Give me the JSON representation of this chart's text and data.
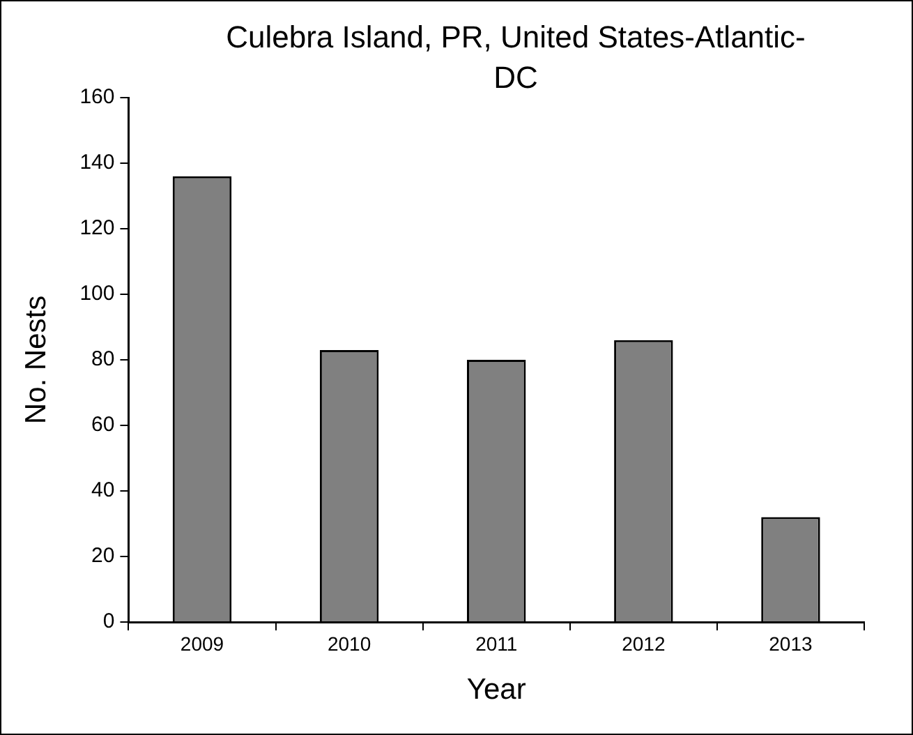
{
  "chart_data": {
    "type": "bar",
    "title": "Culebra Island, PR, United States-Atlantic-DC",
    "xlabel": "Year",
    "ylabel": "No. Nests",
    "categories": [
      "2009",
      "2010",
      "2011",
      "2012",
      "2013"
    ],
    "values": [
      136,
      83,
      80,
      86,
      32
    ],
    "color": "#808080",
    "ylim": [
      0,
      160
    ],
    "yticks": [
      0,
      20,
      40,
      60,
      80,
      100,
      120,
      140,
      160
    ],
    "grid": false,
    "legend": false
  }
}
